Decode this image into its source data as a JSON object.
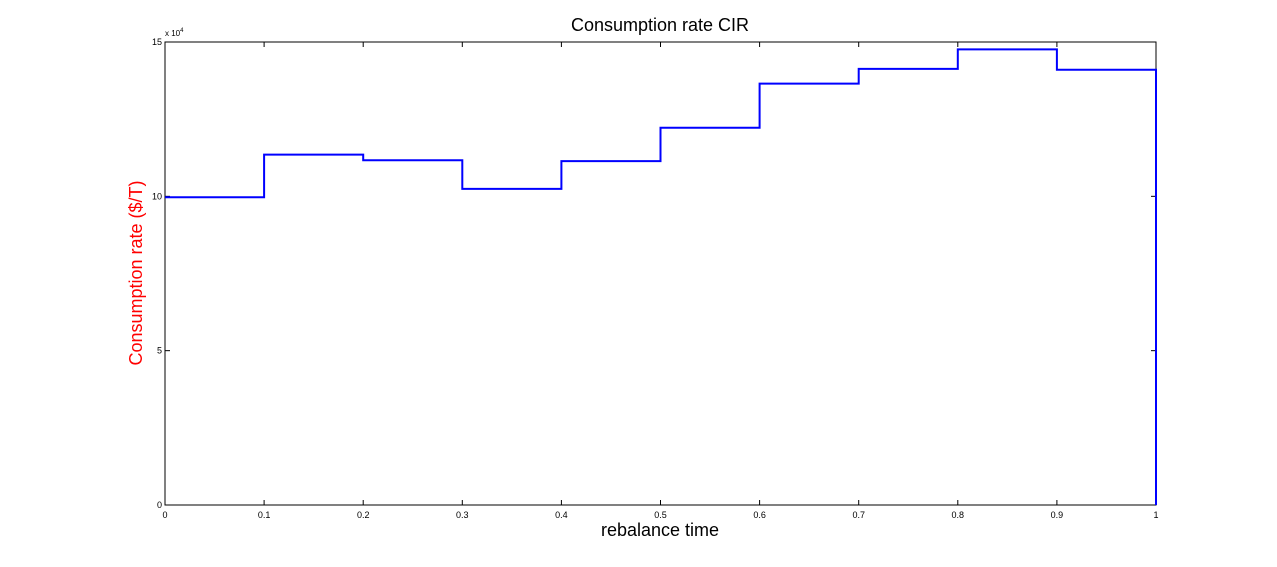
{
  "chart_data": {
    "type": "line",
    "title": "Consumption rate CIR",
    "xlabel": "rebalance time",
    "ylabel": "Consumption rate ($/T)",
    "y_multiplier_label": "x 10",
    "y_multiplier_exponent": "4",
    "xlim": [
      0,
      1
    ],
    "ylim": [
      0,
      150000
    ],
    "x_ticks": [
      0,
      0.1,
      0.2,
      0.3,
      0.4,
      0.5,
      0.6,
      0.7,
      0.8,
      0.9,
      1
    ],
    "x_tick_labels": [
      "0",
      "0.1",
      "0.2",
      "0.3",
      "0.4",
      "0.5",
      "0.6",
      "0.7",
      "0.8",
      "0.9",
      "1"
    ],
    "y_ticks": [
      0,
      50000,
      100000,
      150000
    ],
    "y_tick_labels": [
      "0",
      "5",
      "10",
      "15"
    ],
    "grid": false,
    "line_color": "#0000ff",
    "ylabel_color": "#ff0000",
    "series": [
      {
        "step": true,
        "x": [
          0,
          0.1,
          0.2,
          0.3,
          0.4,
          0.5,
          0.6,
          0.7,
          0.8,
          0.9,
          1
        ],
        "y": [
          99700,
          113500,
          111700,
          102400,
          111400,
          122200,
          136500,
          141300,
          147600,
          141000,
          0
        ]
      }
    ]
  }
}
